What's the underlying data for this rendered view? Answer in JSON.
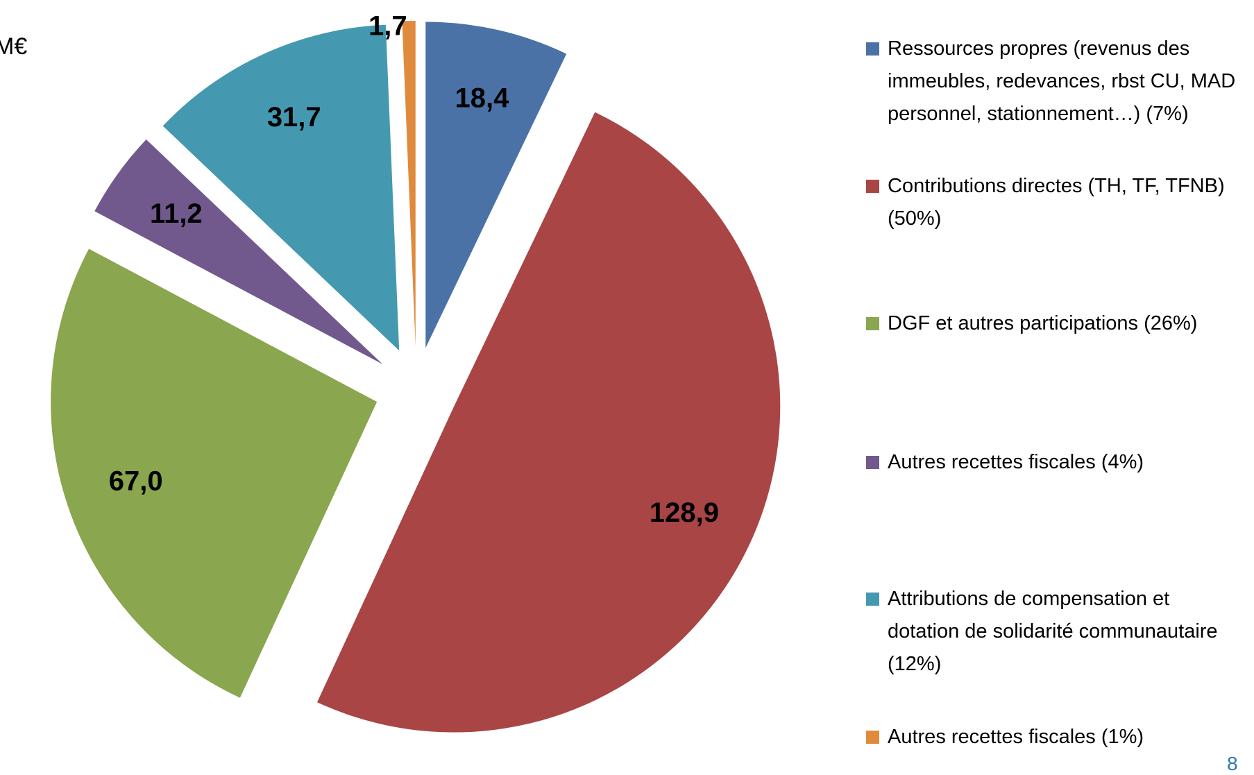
{
  "chart_data": {
    "type": "pie",
    "unit": "M€",
    "categories": [
      "Ressources propres (revenus des immeubles, redevances, rbst CU, MAD personnel, stationnement…) (7%)",
      "Contributions directes (TH, TF, TFNB)(50%)",
      "DGF et autres participations (26%)",
      "Autres recettes fiscales (4%)",
      "Attributions de compensation et dotation de solidarité communautaire (12%)",
      "Autres recettes fiscales (1%)"
    ],
    "values": [
      18.4,
      128.9,
      67.0,
      11.2,
      31.7,
      1.7
    ],
    "value_labels": [
      "18,4",
      "128,9",
      "67,0",
      "11,2",
      "31,7",
      "1,7"
    ],
    "colors": [
      "#4a72a6",
      "#a94545",
      "#8aa64e",
      "#71598e",
      "#4499b0",
      "#e08a3e"
    ],
    "legend": "right",
    "page_number": "8"
  }
}
